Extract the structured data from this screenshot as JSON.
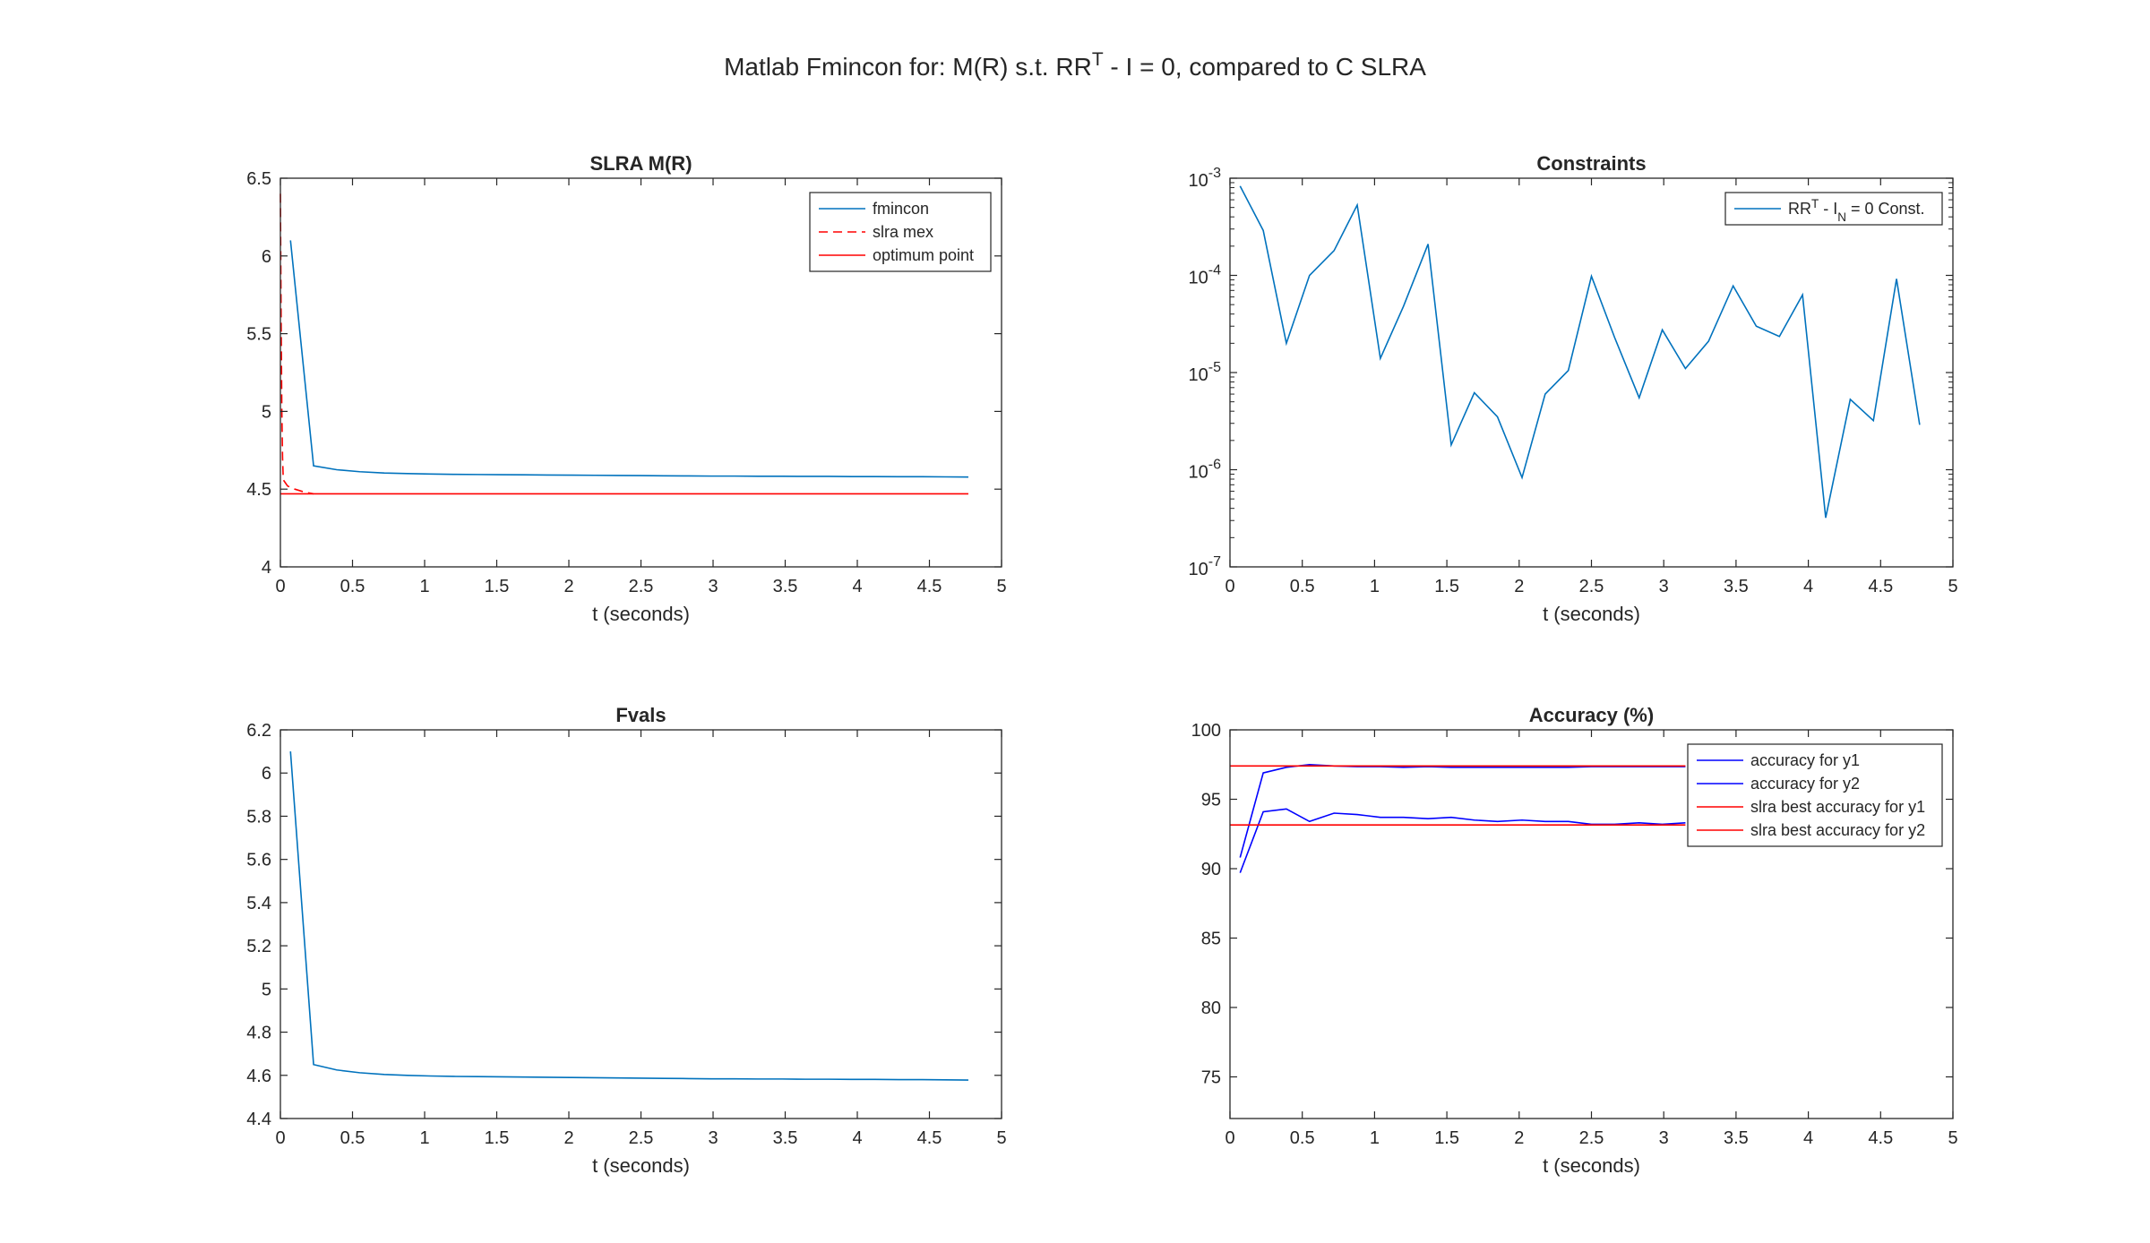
{
  "figure": {
    "title": {
      "parts": [
        {
          "text": "Matlab Fmincon for: M(R) s.t. RR",
          "sup": false
        },
        {
          "text": "T",
          "sup": true
        },
        {
          "text": " - I = 0, compared to C SLRA",
          "sup": false
        }
      ]
    }
  },
  "chart_data": [
    {
      "type": "line",
      "title": "SLRA M(R)",
      "xlabel": "t (seconds)",
      "ylabel": "",
      "xlim": [
        0,
        5
      ],
      "ylim": [
        4,
        6.5
      ],
      "xticks": [
        0,
        0.5,
        1,
        1.5,
        2,
        2.5,
        3,
        3.5,
        4,
        4.5,
        5
      ],
      "yticks": [
        4,
        4.5,
        5,
        5.5,
        6,
        6.5
      ],
      "xtick_labels": [
        "0",
        "0.5",
        "1",
        "1.5",
        "2",
        "2.5",
        "3",
        "3.5",
        "4",
        "4.5",
        "5"
      ],
      "ytick_labels": [
        "4",
        "4.5",
        "5",
        "5.5",
        "6",
        "6.5"
      ],
      "grid": false,
      "legend_position": "top-right",
      "series": [
        {
          "name": "fmincon",
          "color": "#0072BD",
          "style": "solid",
          "x": [
            0.07,
            0.23,
            0.39,
            0.55,
            0.72,
            0.88,
            1.04,
            1.2,
            1.37,
            1.53,
            1.69,
            1.85,
            2.02,
            2.18,
            2.34,
            2.5,
            2.66,
            2.83,
            2.99,
            3.15,
            3.31,
            3.48,
            3.64,
            3.8,
            3.96,
            4.12,
            4.29,
            4.45,
            4.61,
            4.77
          ],
          "y": [
            6.1,
            4.65,
            4.625,
            4.612,
            4.604,
            4.6,
            4.597,
            4.595,
            4.594,
            4.593,
            4.592,
            4.591,
            4.59,
            4.589,
            4.588,
            4.587,
            4.586,
            4.585,
            4.584,
            4.584,
            4.583,
            4.583,
            4.582,
            4.582,
            4.581,
            4.581,
            4.58,
            4.58,
            4.579,
            4.578
          ]
        },
        {
          "name": "slra mex",
          "color": "#FF0000",
          "style": "dashed",
          "x": [
            0.0,
            0.005,
            0.01,
            0.015,
            0.02,
            0.05,
            0.1,
            0.17,
            0.23
          ],
          "y": [
            6.4,
            5.6,
            5.0,
            4.7,
            4.56,
            4.52,
            4.5,
            4.48,
            4.47
          ]
        },
        {
          "name": "optimum point",
          "color": "#FF0000",
          "style": "solid",
          "x": [
            0,
            4.77
          ],
          "y": [
            4.47,
            4.47
          ]
        }
      ]
    },
    {
      "type": "line",
      "title": "Constraints",
      "xlabel": "t (seconds)",
      "ylabel": "",
      "xlim": [
        0,
        5
      ],
      "ylim": [
        1e-07,
        0.001
      ],
      "yscale": "log",
      "xticks": [
        0,
        0.5,
        1,
        1.5,
        2,
        2.5,
        3,
        3.5,
        4,
        4.5,
        5
      ],
      "yticks": [
        1e-07,
        1e-06,
        1e-05,
        0.0001,
        0.001
      ],
      "xtick_labels": [
        "0",
        "0.5",
        "1",
        "1.5",
        "2",
        "2.5",
        "3",
        "3.5",
        "4",
        "4.5",
        "5"
      ],
      "ytick_labels": [
        {
          "base": "10",
          "exp": "-7"
        },
        {
          "base": "10",
          "exp": "-6"
        },
        {
          "base": "10",
          "exp": "-5"
        },
        {
          "base": "10",
          "exp": "-4"
        },
        {
          "base": "10",
          "exp": "-3"
        }
      ],
      "grid": false,
      "legend_position": "top-right",
      "series": [
        {
          "name": "RRT - IN = 0 Const.",
          "name_parts": [
            {
              "text": "RR",
              "shift": "none"
            },
            {
              "text": "T",
              "shift": "sup"
            },
            {
              "text": " - I",
              "shift": "none"
            },
            {
              "text": "N",
              "shift": "sub"
            },
            {
              "text": " = 0 Const.",
              "shift": "none"
            }
          ],
          "color": "#0072BD",
          "style": "solid",
          "x": [
            0.07,
            0.23,
            0.39,
            0.55,
            0.72,
            0.88,
            1.04,
            1.2,
            1.37,
            1.53,
            1.69,
            1.85,
            2.02,
            2.18,
            2.34,
            2.5,
            2.66,
            2.83,
            2.99,
            3.15,
            3.31,
            3.48,
            3.64,
            3.8,
            3.96,
            4.12,
            4.29,
            4.45,
            4.61,
            4.77
          ],
          "y": [
            0.00083,
            0.00029,
            2e-05,
            0.0001,
            0.00018,
            0.00053,
            1.4e-05,
            4.8e-05,
            0.00021,
            1.8e-06,
            6.2e-06,
            3.5e-06,
            8.3e-07,
            6e-06,
            1.05e-05,
            9.8e-05,
            2.3e-05,
            5.5e-06,
            2.75e-05,
            1.1e-05,
            2.1e-05,
            7.8e-05,
            3e-05,
            2.35e-05,
            6.3e-05,
            3.2e-07,
            5.3e-06,
            3.2e-06,
            9.2e-05,
            2.9e-06
          ]
        }
      ]
    },
    {
      "type": "line",
      "title": "Fvals",
      "xlabel": "t (seconds)",
      "ylabel": "",
      "xlim": [
        0,
        5
      ],
      "ylim": [
        4.4,
        6.2
      ],
      "xticks": [
        0,
        0.5,
        1,
        1.5,
        2,
        2.5,
        3,
        3.5,
        4,
        4.5,
        5
      ],
      "yticks": [
        4.4,
        4.6,
        4.8,
        5,
        5.2,
        5.4,
        5.6,
        5.8,
        6,
        6.2
      ],
      "xtick_labels": [
        "0",
        "0.5",
        "1",
        "1.5",
        "2",
        "2.5",
        "3",
        "3.5",
        "4",
        "4.5",
        "5"
      ],
      "ytick_labels": [
        "4.4",
        "4.6",
        "4.8",
        "5",
        "5.2",
        "5.4",
        "5.6",
        "5.8",
        "6",
        "6.2"
      ],
      "grid": false,
      "series": [
        {
          "color": "#0072BD",
          "style": "solid",
          "x": [
            0.07,
            0.23,
            0.39,
            0.55,
            0.72,
            0.88,
            1.04,
            1.2,
            1.37,
            1.53,
            1.69,
            1.85,
            2.02,
            2.18,
            2.34,
            2.5,
            2.66,
            2.83,
            2.99,
            3.15,
            3.31,
            3.48,
            3.64,
            3.8,
            3.96,
            4.12,
            4.29,
            4.45,
            4.61,
            4.77
          ],
          "y": [
            6.1,
            4.65,
            4.625,
            4.612,
            4.604,
            4.6,
            4.597,
            4.595,
            4.594,
            4.593,
            4.592,
            4.591,
            4.59,
            4.589,
            4.588,
            4.587,
            4.586,
            4.585,
            4.584,
            4.584,
            4.583,
            4.583,
            4.582,
            4.582,
            4.581,
            4.581,
            4.58,
            4.58,
            4.579,
            4.578
          ]
        }
      ]
    },
    {
      "type": "line",
      "title": "Accuracy (%)",
      "xlabel": "t (seconds)",
      "ylabel": "",
      "xlim": [
        0,
        5
      ],
      "ylim": [
        72,
        100
      ],
      "xticks": [
        0,
        0.5,
        1,
        1.5,
        2,
        2.5,
        3,
        3.5,
        4,
        4.5,
        5
      ],
      "yticks": [
        75,
        80,
        85,
        90,
        95,
        100
      ],
      "xtick_labels": [
        "0",
        "0.5",
        "1",
        "1.5",
        "2",
        "2.5",
        "3",
        "3.5",
        "4",
        "4.5",
        "5"
      ],
      "ytick_labels": [
        "75",
        "80",
        "85",
        "90",
        "95",
        "100"
      ],
      "grid": false,
      "legend_position": "top-right",
      "series": [
        {
          "name": "accuracy for y1",
          "color": "#0000FF",
          "style": "solid",
          "x": [
            0.07,
            0.23,
            0.39,
            0.55,
            0.72,
            0.88,
            1.04,
            1.2,
            1.37,
            1.53,
            1.69,
            1.85,
            2.02,
            2.18,
            2.34,
            2.5,
            2.66,
            2.83,
            2.99,
            3.15
          ],
          "y": [
            90.8,
            96.9,
            97.3,
            97.5,
            97.4,
            97.35,
            97.35,
            97.3,
            97.35,
            97.3,
            97.3,
            97.3,
            97.3,
            97.3,
            97.3,
            97.35,
            97.35,
            97.35,
            97.35,
            97.35
          ]
        },
        {
          "name": "accuracy for y2",
          "color": "#0000FF",
          "style": "solid",
          "x": [
            0.07,
            0.23,
            0.39,
            0.55,
            0.72,
            0.88,
            1.04,
            1.2,
            1.37,
            1.53,
            1.69,
            1.85,
            2.02,
            2.18,
            2.34,
            2.5,
            2.66,
            2.83,
            2.99,
            3.15
          ],
          "y": [
            89.7,
            94.1,
            94.3,
            93.4,
            94.0,
            93.9,
            93.7,
            93.7,
            93.6,
            93.7,
            93.5,
            93.4,
            93.5,
            93.4,
            93.4,
            93.2,
            93.2,
            93.3,
            93.2,
            93.3
          ]
        },
        {
          "name": "slra best accuracy for y1",
          "color": "#FF0000",
          "style": "solid",
          "x": [
            0,
            3.15
          ],
          "y": [
            97.4,
            97.4
          ]
        },
        {
          "name": "slra best accuracy for y2",
          "color": "#FF0000",
          "style": "solid",
          "x": [
            0,
            3.15
          ],
          "y": [
            93.15,
            93.15
          ]
        }
      ]
    }
  ]
}
